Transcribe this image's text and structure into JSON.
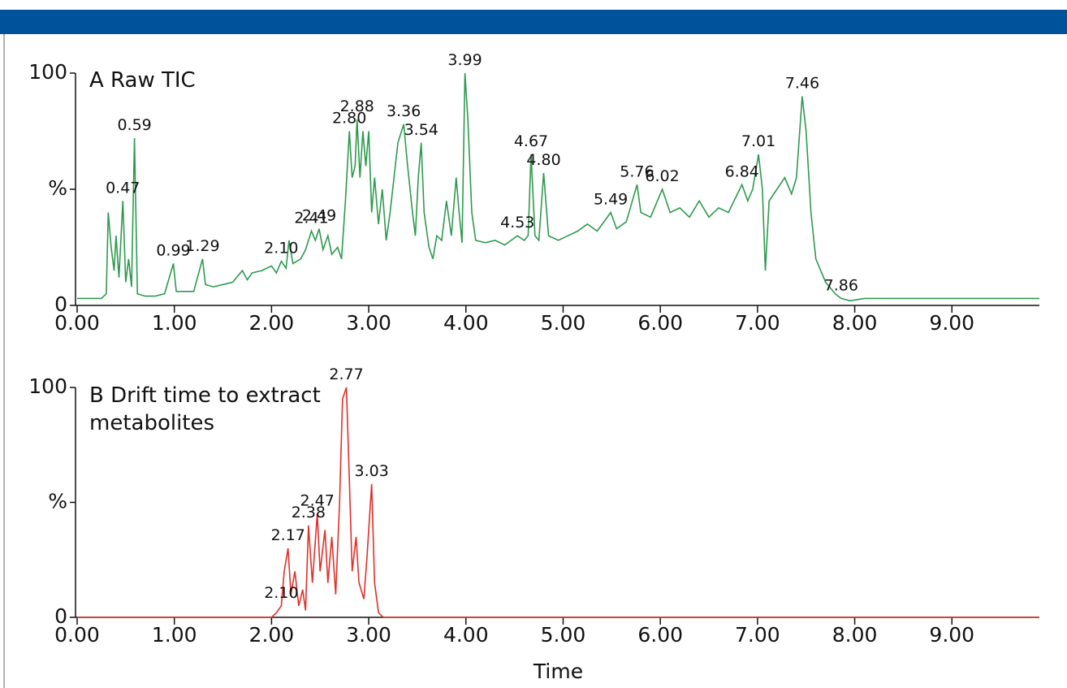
{
  "chart_data": [
    {
      "type": "line",
      "title": "A Raw TIC",
      "color": "#2e9a4e",
      "x": [
        0.0,
        0.25,
        0.3,
        0.32,
        0.35,
        0.38,
        0.4,
        0.43,
        0.47,
        0.5,
        0.53,
        0.56,
        0.59,
        0.62,
        0.7,
        0.8,
        0.9,
        0.99,
        1.02,
        1.1,
        1.2,
        1.29,
        1.32,
        1.4,
        1.5,
        1.6,
        1.7,
        1.75,
        1.8,
        1.9,
        2.0,
        2.05,
        2.1,
        2.15,
        2.18,
        2.22,
        2.3,
        2.35,
        2.41,
        2.45,
        2.49,
        2.53,
        2.58,
        2.62,
        2.68,
        2.72,
        2.76,
        2.8,
        2.83,
        2.86,
        2.88,
        2.91,
        2.94,
        2.97,
        3.0,
        3.03,
        3.06,
        3.1,
        3.14,
        3.18,
        3.22,
        3.26,
        3.3,
        3.36,
        3.4,
        3.45,
        3.48,
        3.51,
        3.54,
        3.57,
        3.62,
        3.66,
        3.7,
        3.75,
        3.8,
        3.85,
        3.9,
        3.93,
        3.96,
        3.99,
        4.02,
        4.06,
        4.1,
        4.2,
        4.3,
        4.4,
        4.53,
        4.6,
        4.64,
        4.67,
        4.71,
        4.75,
        4.8,
        4.85,
        4.95,
        5.05,
        5.15,
        5.25,
        5.35,
        5.49,
        5.55,
        5.65,
        5.76,
        5.8,
        5.9,
        6.02,
        6.1,
        6.2,
        6.3,
        6.4,
        6.5,
        6.6,
        6.7,
        6.84,
        6.9,
        6.95,
        7.01,
        7.05,
        7.08,
        7.12,
        7.2,
        7.28,
        7.35,
        7.4,
        7.46,
        7.5,
        7.55,
        7.6,
        7.7,
        7.8,
        7.86,
        7.95,
        8.1,
        8.5,
        9.0,
        9.5,
        9.9
      ],
      "values": [
        3,
        3,
        5,
        40,
        25,
        15,
        30,
        12,
        45,
        10,
        20,
        8,
        72,
        5,
        4,
        4,
        5,
        18,
        6,
        6,
        6,
        20,
        9,
        8,
        9,
        10,
        15,
        11,
        14,
        15,
        17,
        14,
        19,
        16,
        28,
        18,
        20,
        24,
        32,
        28,
        33,
        24,
        30,
        22,
        25,
        20,
        45,
        75,
        55,
        60,
        80,
        55,
        75,
        60,
        75,
        40,
        55,
        35,
        50,
        28,
        40,
        55,
        70,
        78,
        60,
        40,
        30,
        55,
        70,
        40,
        25,
        20,
        30,
        28,
        45,
        30,
        55,
        40,
        27,
        100,
        80,
        40,
        28,
        27,
        28,
        26,
        30,
        28,
        30,
        65,
        30,
        28,
        57,
        30,
        28,
        30,
        32,
        35,
        32,
        40,
        33,
        36,
        52,
        40,
        38,
        50,
        40,
        42,
        38,
        45,
        38,
        42,
        40,
        52,
        45,
        50,
        65,
        50,
        15,
        45,
        50,
        55,
        48,
        55,
        90,
        75,
        40,
        20,
        10,
        5,
        3,
        2,
        3,
        3,
        3,
        3,
        3
      ],
      "peaks": [
        {
          "x": 0.47,
          "y": 45,
          "label": "0.47"
        },
        {
          "x": 0.59,
          "y": 72,
          "label": "0.59"
        },
        {
          "x": 0.99,
          "y": 18,
          "label": "0.99"
        },
        {
          "x": 1.29,
          "y": 20,
          "label": "1.29"
        },
        {
          "x": 2.1,
          "y": 19,
          "label": "2.10"
        },
        {
          "x": 2.41,
          "y": 32,
          "label": "2.41"
        },
        {
          "x": 2.49,
          "y": 33,
          "label": "2.49"
        },
        {
          "x": 2.8,
          "y": 75,
          "label": "2.80"
        },
        {
          "x": 2.88,
          "y": 80,
          "label": "2.88"
        },
        {
          "x": 3.36,
          "y": 78,
          "label": "3.36"
        },
        {
          "x": 3.54,
          "y": 70,
          "label": "3.54"
        },
        {
          "x": 3.99,
          "y": 100,
          "label": "3.99"
        },
        {
          "x": 4.53,
          "y": 30,
          "label": "4.53"
        },
        {
          "x": 4.67,
          "y": 65,
          "label": "4.67"
        },
        {
          "x": 4.8,
          "y": 57,
          "label": "4.80"
        },
        {
          "x": 5.49,
          "y": 40,
          "label": "5.49"
        },
        {
          "x": 5.76,
          "y": 52,
          "label": "5.76"
        },
        {
          "x": 6.02,
          "y": 50,
          "label": "6.02"
        },
        {
          "x": 6.84,
          "y": 52,
          "label": "6.84"
        },
        {
          "x": 7.01,
          "y": 65,
          "label": "7.01"
        },
        {
          "x": 7.46,
          "y": 90,
          "label": "7.46"
        },
        {
          "x": 7.86,
          "y": 3,
          "label": "7.86"
        }
      ],
      "xlim": [
        0,
        9.9
      ],
      "ylim": [
        0,
        100
      ],
      "xticks": [
        {
          "value": 0,
          "label": "0.00"
        },
        {
          "value": 1,
          "label": "1.00"
        },
        {
          "value": 2,
          "label": "2.00"
        },
        {
          "value": 3,
          "label": "3.00"
        },
        {
          "value": 4,
          "label": "4.00"
        },
        {
          "value": 5,
          "label": "5.00"
        },
        {
          "value": 6,
          "label": "6.00"
        },
        {
          "value": 7,
          "label": "7.00"
        },
        {
          "value": 8,
          "label": "8.00"
        },
        {
          "value": 9,
          "label": "9.00"
        }
      ],
      "yticks": [
        0,
        {
          "value": 50,
          "label": "%"
        },
        100
      ]
    },
    {
      "type": "line",
      "title": "B Drift time to extract metabolites",
      "color": "#e0302a",
      "xlabel": "Time",
      "x": [
        0.0,
        2.0,
        2.05,
        2.1,
        2.13,
        2.17,
        2.2,
        2.24,
        2.28,
        2.32,
        2.35,
        2.38,
        2.42,
        2.47,
        2.5,
        2.55,
        2.58,
        2.62,
        2.66,
        2.7,
        2.73,
        2.77,
        2.8,
        2.83,
        2.87,
        2.9,
        2.95,
        2.98,
        3.03,
        3.06,
        3.1,
        3.15,
        9.9
      ],
      "values": [
        0,
        0,
        2,
        5,
        20,
        30,
        10,
        20,
        5,
        12,
        3,
        40,
        15,
        45,
        20,
        38,
        15,
        35,
        10,
        50,
        95,
        100,
        60,
        20,
        35,
        15,
        8,
        25,
        58,
        15,
        2,
        0,
        0
      ],
      "peaks": [
        {
          "x": 2.1,
          "y": 5,
          "label": "2.10"
        },
        {
          "x": 2.17,
          "y": 30,
          "label": "2.17"
        },
        {
          "x": 2.38,
          "y": 40,
          "label": "2.38"
        },
        {
          "x": 2.47,
          "y": 45,
          "label": "2.47"
        },
        {
          "x": 2.77,
          "y": 100,
          "label": "2.77"
        },
        {
          "x": 3.03,
          "y": 58,
          "label": "3.03"
        }
      ],
      "xlim": [
        0,
        9.9
      ],
      "ylim": [
        0,
        100
      ],
      "xticks": [
        {
          "value": 0,
          "label": "0.00"
        },
        {
          "value": 1,
          "label": "1.00"
        },
        {
          "value": 2,
          "label": "2.00"
        },
        {
          "value": 3,
          "label": "3.00"
        },
        {
          "value": 4,
          "label": "4.00"
        },
        {
          "value": 5,
          "label": "5.00"
        },
        {
          "value": 6,
          "label": "6.00"
        },
        {
          "value": 7,
          "label": "7.00"
        },
        {
          "value": 8,
          "label": "8.00"
        },
        {
          "value": 9,
          "label": "9.00"
        }
      ],
      "yticks": [
        0,
        {
          "value": 50,
          "label": "%"
        },
        100
      ]
    }
  ]
}
